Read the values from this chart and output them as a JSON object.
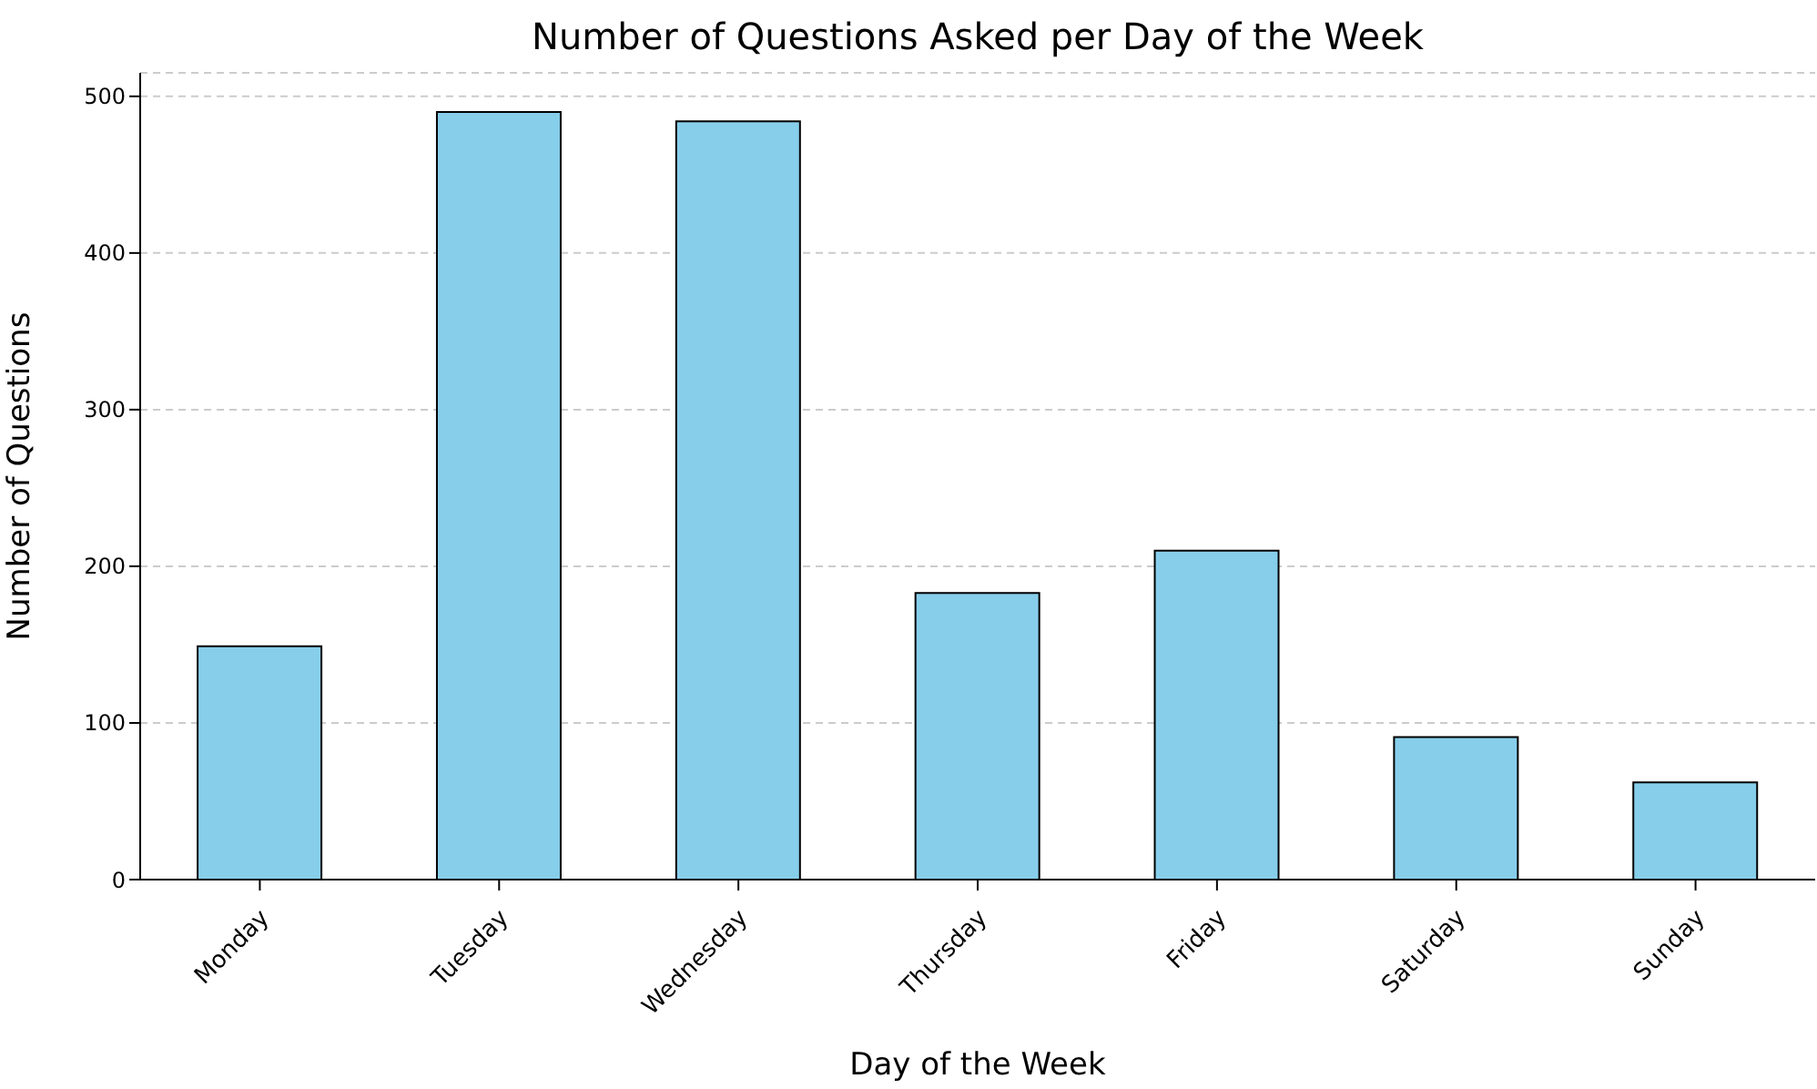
{
  "chart_data": {
    "type": "bar",
    "title": "Number of Questions Asked per Day of the Week",
    "xlabel": "Day of the Week",
    "ylabel": "Number of Questions",
    "categories": [
      "Monday",
      "Tuesday",
      "Wednesday",
      "Thursday",
      "Friday",
      "Saturday",
      "Sunday"
    ],
    "values": [
      149,
      490,
      484,
      183,
      210,
      91,
      62
    ],
    "color": "#87ceeb",
    "ylim": [
      0,
      515
    ],
    "yticks": [
      0,
      100,
      200,
      300,
      400,
      500
    ],
    "grid": "y"
  }
}
